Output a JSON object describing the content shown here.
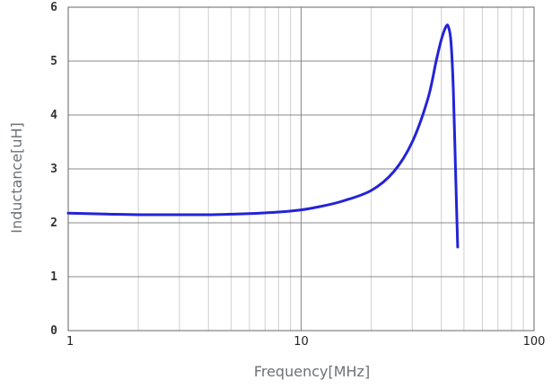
{
  "chart_data": {
    "type": "line",
    "title": "",
    "xlabel": "Frequency[MHz]",
    "ylabel": "Inductance[uH]",
    "x_scale": "log",
    "xlim": [
      1,
      100
    ],
    "ylim": [
      0,
      6
    ],
    "x_ticks": [
      {
        "value": 1,
        "label": "1"
      },
      {
        "value": 10,
        "label": "10"
      },
      {
        "value": 100,
        "label": "100"
      }
    ],
    "y_ticks": [
      {
        "value": 0,
        "label": "0"
      },
      {
        "value": 1,
        "label": "1"
      },
      {
        "value": 2,
        "label": "2"
      },
      {
        "value": 3,
        "label": "3"
      },
      {
        "value": 4,
        "label": "4"
      },
      {
        "value": 5,
        "label": "5"
      },
      {
        "value": 6,
        "label": "6"
      }
    ],
    "grid": true,
    "series_color": "#2323d8",
    "series": [
      {
        "points": [
          [
            1,
            2.18
          ],
          [
            1.5,
            2.16
          ],
          [
            2,
            2.15
          ],
          [
            3,
            2.15
          ],
          [
            4,
            2.15
          ],
          [
            5,
            2.16
          ],
          [
            6,
            2.17
          ],
          [
            8,
            2.2
          ],
          [
            10,
            2.24
          ],
          [
            12,
            2.3
          ],
          [
            15,
            2.4
          ],
          [
            20,
            2.6
          ],
          [
            25,
            2.95
          ],
          [
            30,
            3.5
          ],
          [
            35,
            4.3
          ],
          [
            38,
            5.0
          ],
          [
            40,
            5.4
          ],
          [
            42,
            5.65
          ],
          [
            43,
            5.62
          ],
          [
            44,
            5.35
          ],
          [
            45,
            4.5
          ],
          [
            46,
            3.0
          ],
          [
            47,
            1.55
          ]
        ]
      }
    ]
  }
}
